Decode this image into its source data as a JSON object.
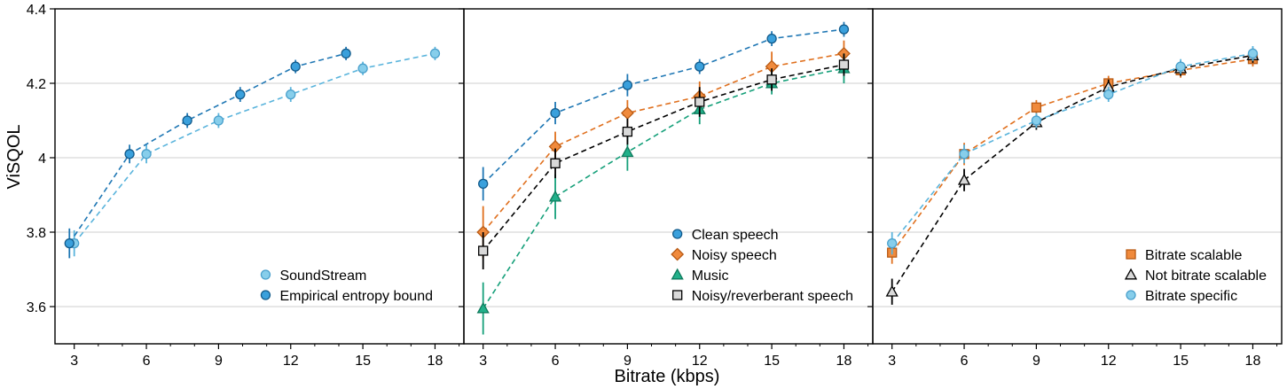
{
  "figure": {
    "ylabel": "ViSQOL",
    "xlabel": "Bitrate (kbps)"
  },
  "chart_data": [
    {
      "type": "line",
      "xlabel": "Bitrate (kbps)",
      "ylabel": "ViSQOL",
      "xlim": [
        2.2,
        19.2
      ],
      "ylim": [
        3.5,
        4.4
      ],
      "x_ticks": [
        3,
        6,
        9,
        12,
        15,
        18
      ],
      "x_tick_labels": [
        "3",
        "6",
        "9",
        "12",
        "15",
        "18"
      ],
      "y_ticks": [
        3.6,
        3.8,
        4.0,
        4.2,
        4.4
      ],
      "y_tick_labels": [
        "3.6",
        "3.8",
        "4",
        "4.2",
        "4.4"
      ],
      "grid": "horizontal",
      "legend_position": "bottom-right",
      "series": [
        {
          "name": "SoundStream",
          "marker": "circle",
          "color": "#87ceeb",
          "line_color": "#5ab4dc",
          "x": [
            3,
            6,
            9,
            12,
            15,
            18
          ],
          "y": [
            3.77,
            4.01,
            4.1,
            4.17,
            4.24,
            4.28
          ],
          "err": [
            0.035,
            0.025,
            0.02,
            0.02,
            0.018,
            0.018
          ]
        },
        {
          "name": "Empirical entropy bound",
          "marker": "circle",
          "color": "#3aa0dc",
          "line_color": "#1f77b4",
          "x": [
            2.8,
            5.3,
            7.7,
            9.9,
            12.2,
            14.3
          ],
          "y": [
            3.77,
            4.01,
            4.1,
            4.17,
            4.245,
            4.28
          ],
          "err": [
            0.04,
            0.025,
            0.02,
            0.02,
            0.018,
            0.018
          ]
        }
      ]
    },
    {
      "type": "line",
      "xlabel": "Bitrate (kbps)",
      "ylabel": "",
      "xlim": [
        2.2,
        19.2
      ],
      "ylim": [
        3.5,
        4.4
      ],
      "x_ticks": [
        3,
        6,
        9,
        12,
        15,
        18
      ],
      "x_tick_labels": [
        "3",
        "6",
        "9",
        "12",
        "15",
        "18"
      ],
      "y_ticks": [
        3.6,
        3.8,
        4.0,
        4.2,
        4.4
      ],
      "grid": "horizontal",
      "legend_position": "bottom-right",
      "series": [
        {
          "name": "Clean speech",
          "marker": "circle",
          "color": "#3aa0dc",
          "line_color": "#1f77b4",
          "x": [
            3,
            6,
            9,
            12,
            15,
            18
          ],
          "y": [
            3.93,
            4.12,
            4.195,
            4.245,
            4.32,
            4.345
          ],
          "err": [
            0.045,
            0.03,
            0.03,
            0.02,
            0.02,
            0.02
          ]
        },
        {
          "name": "Noisy speech",
          "marker": "diamond",
          "color": "#f08a3c",
          "line_color": "#e0701e",
          "x": [
            3,
            6,
            9,
            12,
            15,
            18
          ],
          "y": [
            3.8,
            4.03,
            4.12,
            4.165,
            4.245,
            4.28
          ],
          "err": [
            0.07,
            0.04,
            0.035,
            0.04,
            0.04,
            0.035
          ]
        },
        {
          "name": "Music",
          "marker": "triangle",
          "color": "#22b08a",
          "line_color": "#16a07a",
          "x": [
            3,
            6,
            9,
            12,
            15,
            18
          ],
          "y": [
            3.595,
            3.895,
            4.015,
            4.13,
            4.2,
            4.24
          ],
          "err": [
            0.07,
            0.06,
            0.05,
            0.04,
            0.03,
            0.04
          ]
        },
        {
          "name": "Noisy/reverberant speech",
          "marker": "square",
          "color": "#d9d9d9",
          "line_color": "#000000",
          "x": [
            3,
            6,
            9,
            12,
            15,
            18
          ],
          "y": [
            3.75,
            3.985,
            4.07,
            4.15,
            4.21,
            4.25
          ],
          "err": [
            0.05,
            0.04,
            0.035,
            0.04,
            0.03,
            0.03
          ]
        }
      ]
    },
    {
      "type": "line",
      "xlabel": "Bitrate (kbps)",
      "ylabel": "",
      "xlim": [
        2.2,
        19.2
      ],
      "ylim": [
        3.5,
        4.4
      ],
      "x_ticks": [
        3,
        6,
        9,
        12,
        15,
        18
      ],
      "x_tick_labels": [
        "3",
        "6",
        "9",
        "12",
        "15",
        "18"
      ],
      "y_ticks": [
        3.6,
        3.8,
        4.0,
        4.2,
        4.4
      ],
      "grid": "horizontal",
      "legend_position": "bottom-right",
      "series": [
        {
          "name": "Bitrate scalable",
          "marker": "square",
          "color": "#f08a3c",
          "line_color": "#e0701e",
          "x": [
            3,
            6,
            9,
            12,
            15,
            18
          ],
          "y": [
            3.745,
            4.01,
            4.135,
            4.2,
            4.235,
            4.265
          ],
          "err": [
            0.03,
            0.03,
            0.02,
            0.02,
            0.02,
            0.02
          ]
        },
        {
          "name": "Not bitrate scalable",
          "marker": "triangle",
          "color": "#d9d9d9",
          "line_color": "#000000",
          "x": [
            3,
            6,
            9,
            12,
            15,
            18
          ],
          "y": [
            3.64,
            3.94,
            4.095,
            4.19,
            4.24,
            4.275
          ],
          "err": [
            0.035,
            0.03,
            0.02,
            0.02,
            0.02,
            0.02
          ]
        },
        {
          "name": "Bitrate specific",
          "marker": "circle",
          "color": "#87ceeb",
          "line_color": "#5ab4dc",
          "x": [
            3,
            6,
            9,
            12,
            15,
            18
          ],
          "y": [
            3.77,
            4.01,
            4.1,
            4.17,
            4.245,
            4.28
          ],
          "err": [
            0.03,
            0.025,
            0.02,
            0.02,
            0.02,
            0.02
          ]
        }
      ]
    }
  ]
}
